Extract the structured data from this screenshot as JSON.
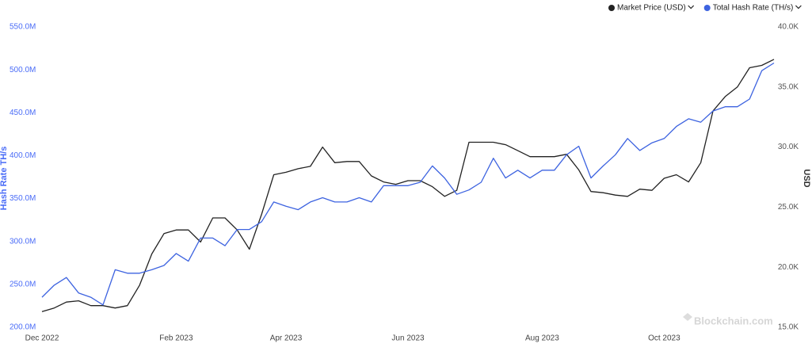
{
  "chart_data": {
    "type": "line",
    "y_label": "Hash Rate TH/s",
    "y2_label": "USD",
    "watermark": "Blockchain.com",
    "categories": [
      "Dec 2022",
      null,
      null,
      null,
      null,
      null,
      null,
      null,
      null,
      null,
      null,
      "Feb 2023",
      null,
      null,
      null,
      null,
      null,
      null,
      null,
      null,
      "Apr 2023",
      null,
      null,
      null,
      null,
      null,
      null,
      null,
      null,
      null,
      "Jun 2023",
      null,
      null,
      null,
      null,
      null,
      null,
      null,
      null,
      null,
      null,
      "Aug 2023",
      null,
      null,
      null,
      null,
      null,
      null,
      null,
      null,
      null,
      "Oct 2023",
      null,
      null,
      null,
      null,
      null,
      null,
      null,
      null,
      null
    ],
    "series": [
      {
        "name": "Market Price (USD)",
        "color": "#222222",
        "axis": "y2",
        "values": [
          16300,
          16600,
          17100,
          17200,
          16800,
          16800,
          16600,
          16800,
          18500,
          21100,
          22800,
          23100,
          23100,
          22100,
          24100,
          24100,
          23100,
          21500,
          24400,
          27700,
          27900,
          28200,
          28400,
          30000,
          28700,
          28800,
          28800,
          27600,
          27100,
          26900,
          27200,
          27200,
          26700,
          25900,
          26400,
          30400,
          30400,
          30400,
          30200,
          29700,
          29200,
          29200,
          29200,
          29400,
          28100,
          26300,
          26200,
          26000,
          25900,
          26500,
          26400,
          27400,
          27700,
          27100,
          28700,
          33000,
          34200,
          35000,
          36600,
          36800,
          37300
        ]
      },
      {
        "name": "Total Hash Rate (TH/s)",
        "color": "#3d63e0",
        "values": [
          235000000,
          249000000,
          258000000,
          240000000,
          235000000,
          226000000,
          267000000,
          263000000,
          263000000,
          267000000,
          272000000,
          286000000,
          277000000,
          304000000,
          304000000,
          295000000,
          314000000,
          314000000,
          323000000,
          346000000,
          341000000,
          337000000,
          346000000,
          351000000,
          346000000,
          346000000,
          351000000,
          346000000,
          365000000,
          365000000,
          365000000,
          369000000,
          388000000,
          374000000,
          355000000,
          360000000,
          369000000,
          397000000,
          374000000,
          383000000,
          374000000,
          383000000,
          383000000,
          401000000,
          411000000,
          374000000,
          388000000,
          401000000,
          420000000,
          406000000,
          415000000,
          420000000,
          434000000,
          443000000,
          439000000,
          452000000,
          457000000,
          457000000,
          466000000,
          499000000,
          508000000
        ]
      }
    ],
    "ylim": [
      200000000,
      550000000
    ],
    "yticks": [
      {
        "value": 200000000,
        "label": "200.0M"
      },
      {
        "value": 250000000,
        "label": "250.0M"
      },
      {
        "value": 300000000,
        "label": "300.0M"
      },
      {
        "value": 350000000,
        "label": "350.0M"
      },
      {
        "value": 400000000,
        "label": "400.0M"
      },
      {
        "value": 450000000,
        "label": "450.0M"
      },
      {
        "value": 500000000,
        "label": "500.0M"
      },
      {
        "value": 550000000,
        "label": "550.0M"
      }
    ],
    "y2lim": [
      15000,
      40000
    ],
    "y2ticks": [
      {
        "value": 15000,
        "label": "15.0K"
      },
      {
        "value": 20000,
        "label": "20.0K"
      },
      {
        "value": 25000,
        "label": "25.0K"
      },
      {
        "value": 30000,
        "label": "30.0K"
      },
      {
        "value": 35000,
        "label": "35.0K"
      },
      {
        "value": 40000,
        "label": "40.0K"
      }
    ],
    "grid": false
  }
}
